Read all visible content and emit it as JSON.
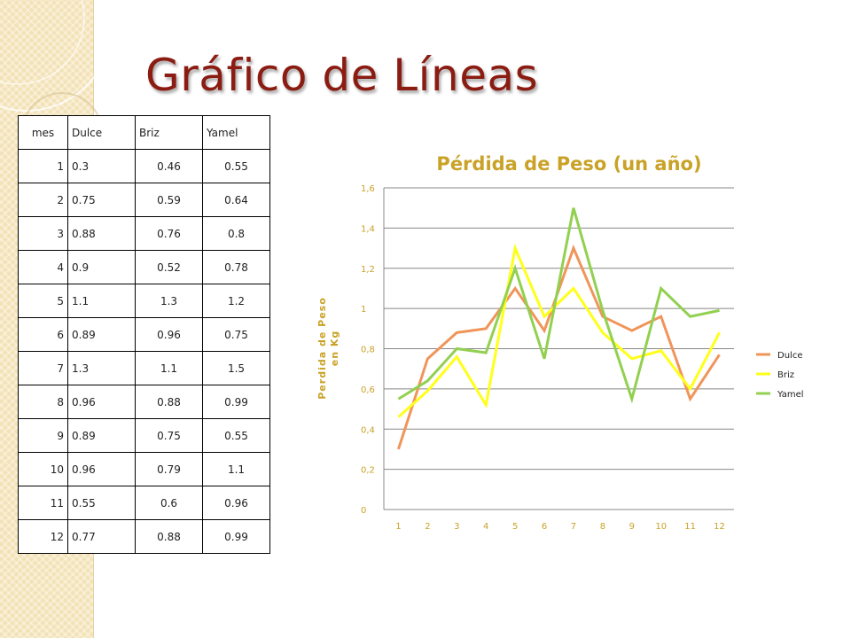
{
  "slide": {
    "title": "Gráfico de Líneas"
  },
  "table": {
    "headers": [
      "mes",
      "Dulce",
      "Briz",
      "Yamel"
    ],
    "rows": [
      [
        "1",
        "0.3",
        "0.46",
        "0.55"
      ],
      [
        "2",
        "0.75",
        "0.59",
        "0.64"
      ],
      [
        "3",
        "0.88",
        "0.76",
        "0.8"
      ],
      [
        "4",
        "0.9",
        "0.52",
        "0.78"
      ],
      [
        "5",
        "1.1",
        "1.3",
        "1.2"
      ],
      [
        "6",
        "0.89",
        "0.96",
        "0.75"
      ],
      [
        "7",
        "1.3",
        "1.1",
        "1.5"
      ],
      [
        "8",
        "0.96",
        "0.88",
        "0.99"
      ],
      [
        "9",
        "0.89",
        "0.75",
        "0.55"
      ],
      [
        "10",
        "0.96",
        "0.79",
        "1.1"
      ],
      [
        "11",
        "0.55",
        "0.6",
        "0.96"
      ],
      [
        "12",
        "0.77",
        "0.88",
        "0.99"
      ]
    ]
  },
  "chart_data": {
    "type": "line",
    "title": "Pérdida de Peso (un año)",
    "xlabel": "",
    "ylabel": "Perdida de Peso en Kg",
    "categories": [
      "1",
      "2",
      "3",
      "4",
      "5",
      "6",
      "7",
      "8",
      "9",
      "10",
      "11",
      "12"
    ],
    "y_tick_labels": [
      "0",
      "0,2",
      "0,4",
      "0,6",
      "0,8",
      "1",
      "1,2",
      "1,4",
      "1,6"
    ],
    "ylim": [
      0,
      1.6
    ],
    "grid": true,
    "legend_position": "right",
    "series": [
      {
        "name": "Dulce",
        "color": "#f0955a",
        "values": [
          0.3,
          0.75,
          0.88,
          0.9,
          1.1,
          0.89,
          1.3,
          0.96,
          0.89,
          0.96,
          0.55,
          0.77
        ]
      },
      {
        "name": "Briz",
        "color": "#ffff1a",
        "values": [
          0.46,
          0.59,
          0.76,
          0.52,
          1.3,
          0.96,
          1.1,
          0.88,
          0.75,
          0.79,
          0.6,
          0.88
        ]
      },
      {
        "name": "Yamel",
        "color": "#92d050",
        "values": [
          0.55,
          0.64,
          0.8,
          0.78,
          1.2,
          0.75,
          1.5,
          0.99,
          0.55,
          1.1,
          0.96,
          0.99
        ]
      }
    ],
    "colors": {
      "title": "#c9a227",
      "axis_text": "#c9a227",
      "ylabel": "#c9a227",
      "grid": "#888888"
    }
  }
}
